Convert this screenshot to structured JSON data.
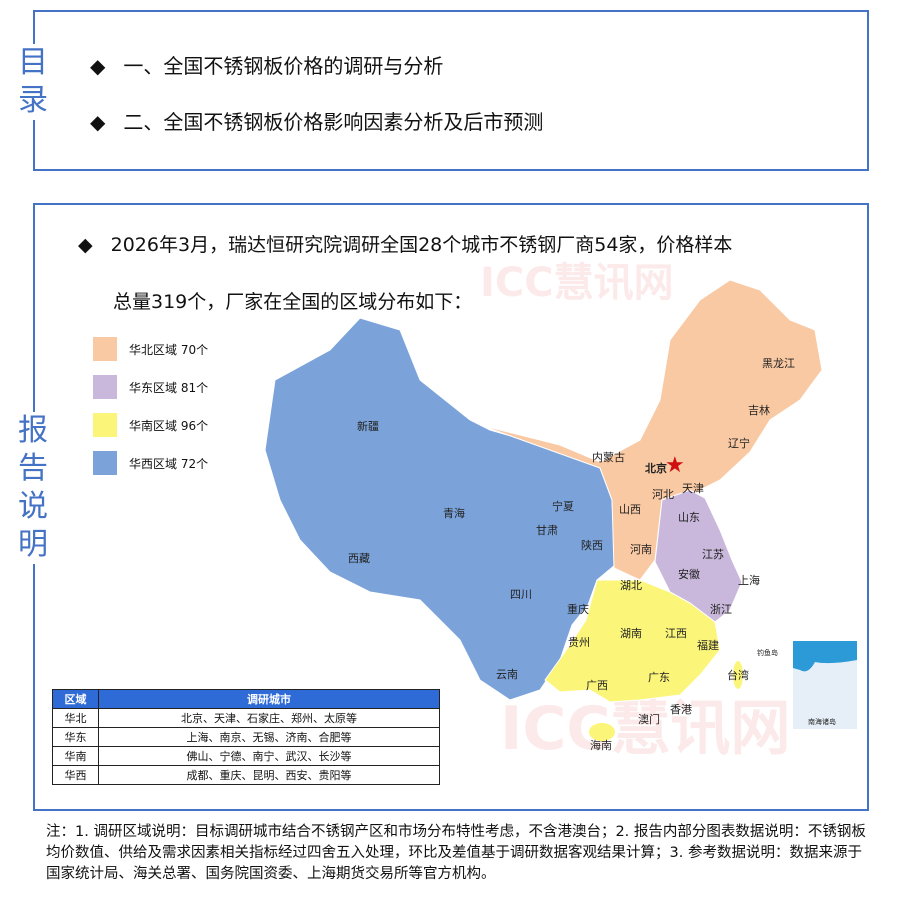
{
  "toc": {
    "side_label": "目录",
    "items": [
      "一、全国不锈钢板价格的调研与分析",
      "二、全国不锈钢板价格影响因素分析及后市预测"
    ]
  },
  "report": {
    "side_label": "报告说明",
    "intro_line1": "2026年3月，瑞达恒研究院调研全国28个城市不锈钢厂商54家，价格样本",
    "intro_line2": "总量319个，厂家在全国的区域分布如下：",
    "legend": [
      {
        "label": "华北区域  70个",
        "color": "#F9C9A3"
      },
      {
        "label": "华东区域  81个",
        "color": "#C9B8DC"
      },
      {
        "label": "华南区域  96个",
        "color": "#FBF57A"
      },
      {
        "label": "华西区域  72个",
        "color": "#7BA3DA"
      }
    ],
    "map_labels": {
      "xinjiang": "新疆",
      "xizang": "西藏",
      "qinghai": "青海",
      "gansu": "甘肃",
      "ningxia": "宁夏",
      "neimenggu": "内蒙古",
      "heilongjiang": "黑龙江",
      "jilin": "吉林",
      "liaoning": "辽宁",
      "beijing": "北京",
      "tianjin": "天津",
      "hebei": "河北",
      "shanxi": "山西",
      "shandong": "山东",
      "henan": "河南",
      "shaanxi": "陕西",
      "sichuan": "四川",
      "chongqing": "重庆",
      "guizhou": "贵州",
      "yunnan": "云南",
      "hubei": "湖北",
      "hunan": "湖南",
      "jiangxi": "江西",
      "anhui": "安徽",
      "jiangsu": "江苏",
      "shanghai": "上海",
      "zhejiang": "浙江",
      "fujian": "福建",
      "guangxi": "广西",
      "guangdong": "广东",
      "taiwan": "台湾",
      "hongkong": "香港",
      "macau": "澳门",
      "hainan": "海南",
      "diaoyu": "钓鱼岛",
      "nanhai": "南海诸岛"
    },
    "table": {
      "headers": [
        "区域",
        "调研城市"
      ],
      "rows": [
        [
          "华北",
          "北京、天津、石家庄、郑州、太原等"
        ],
        [
          "华东",
          "上海、南京、无锡、济南、合肥等"
        ],
        [
          "华南",
          "佛山、宁德、南宁、武汉、长沙等"
        ],
        [
          "华西",
          "成都、重庆、昆明、西安、贵阳等"
        ]
      ]
    }
  },
  "note": "注：1. 调研区域说明：目标调研城市结合不锈钢产区和市场分布特性考虑，不含港澳台；2. 报告内部分图表数据说明：不锈钢板均价数值、供给及需求因素相关指标经过四舍五入处理，环比及差值基于调研数据客观结果计算；3. 参考数据说明：数据来源于国家统计局、海关总署、国务院国资委、上海期货交易所等官方机构。",
  "watermark": "ICC慧讯网"
}
